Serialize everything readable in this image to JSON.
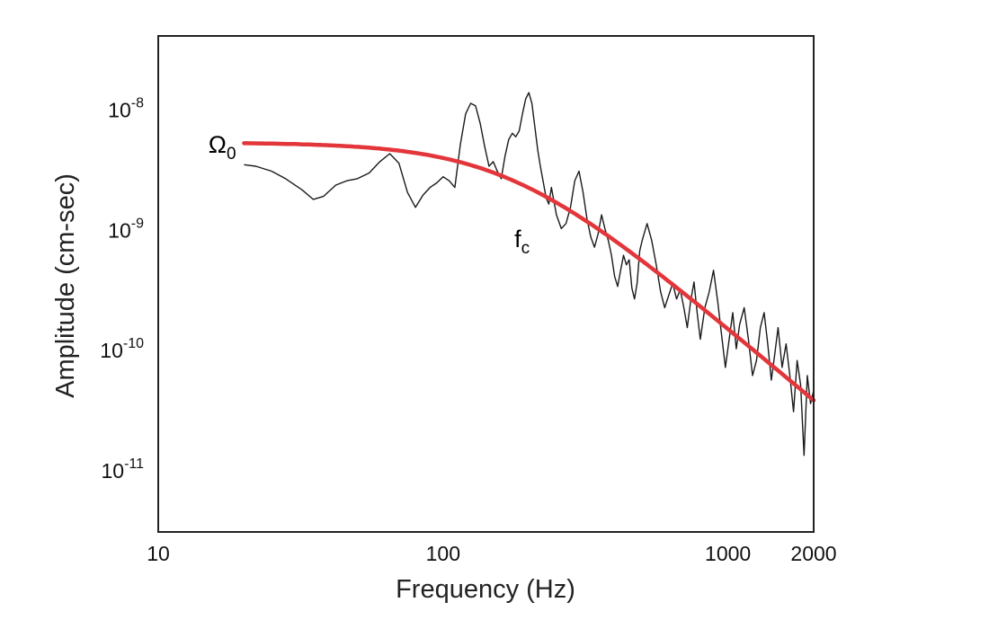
{
  "chart_data": {
    "type": "line",
    "xscale": "log",
    "yscale": "log",
    "xlim": [
      10,
      2000
    ],
    "ylim": [
      3e-12,
      4e-08
    ],
    "xlabel": "Frequency (Hz)",
    "ylabel": "Amplitude (cm-sec)",
    "x_ticks": [
      {
        "value": 10,
        "label": "10"
      },
      {
        "value": 100,
        "label": "100"
      },
      {
        "value": 1000,
        "label": "1000"
      },
      {
        "value": 2000,
        "label": "2000"
      }
    ],
    "y_ticks": [
      {
        "value": 1e-08,
        "base": "10",
        "exp": "-8"
      },
      {
        "value": 1e-09,
        "base": "10",
        "exp": "-9"
      },
      {
        "value": 1e-10,
        "base": "10",
        "exp": "-10"
      },
      {
        "value": 1e-11,
        "base": "10",
        "exp": "-11"
      }
    ],
    "grid": false,
    "series": [
      {
        "color": "#1a1a1a",
        "x": [
          20,
          22,
          25,
          28,
          32,
          35,
          38,
          42,
          46,
          50,
          55,
          60,
          65,
          70,
          75,
          80,
          85,
          90,
          95,
          100,
          105,
          110,
          115,
          120,
          125,
          130,
          135,
          140,
          145,
          150,
          155,
          160,
          165,
          170,
          175,
          180,
          185,
          190,
          195,
          200,
          205,
          210,
          215,
          220,
          225,
          230,
          235,
          240,
          250,
          260,
          270,
          280,
          290,
          300,
          310,
          320,
          330,
          340,
          350,
          360,
          370,
          380,
          390,
          400,
          410,
          420,
          430,
          440,
          450,
          460,
          470,
          480,
          490,
          500,
          520,
          540,
          560,
          580,
          600,
          620,
          640,
          660,
          680,
          700,
          720,
          740,
          760,
          780,
          800,
          830,
          860,
          890,
          920,
          950,
          980,
          1010,
          1040,
          1070,
          1100,
          1140,
          1180,
          1220,
          1260,
          1300,
          1340,
          1380,
          1420,
          1460,
          1500,
          1550,
          1600,
          1650,
          1700,
          1750,
          1800,
          1850,
          1900,
          1950,
          2000
        ],
        "values": [
          3.4e-09,
          3.3e-09,
          3e-09,
          2.6e-09,
          2.1e-09,
          1.75e-09,
          1.85e-09,
          2.3e-09,
          2.5e-09,
          2.6e-09,
          2.9e-09,
          3.6e-09,
          4.2e-09,
          3.5e-09,
          2e-09,
          1.5e-09,
          1.9e-09,
          2.2e-09,
          2.4e-09,
          2.7e-09,
          2.5e-09,
          2.2e-09,
          5e-09,
          9e-09,
          1.1e-08,
          1.05e-08,
          7.5e-09,
          4.8e-09,
          3.3e-09,
          3.6e-09,
          3e-09,
          2.6e-09,
          4e-09,
          5.5e-09,
          6.2e-09,
          5.8e-09,
          6.5e-09,
          9e-09,
          1.2e-08,
          1.35e-08,
          1.1e-08,
          7e-09,
          4.5e-09,
          3.2e-09,
          2.4e-09,
          1.8e-09,
          1.6e-09,
          2.2e-09,
          1.3e-09,
          1e-09,
          1.1e-09,
          1.5e-09,
          2.5e-09,
          3e-09,
          2e-09,
          1.2e-09,
          8.5e-10,
          7e-10,
          9e-10,
          1.3e-09,
          1e-09,
          8e-10,
          6e-10,
          4e-10,
          3.3e-10,
          4.5e-10,
          6e-10,
          5e-10,
          5.5e-10,
          3.2e-10,
          2.6e-10,
          3.5e-10,
          6.5e-10,
          8e-10,
          1.1e-09,
          8e-10,
          5e-10,
          3e-10,
          2.2e-10,
          2.8e-10,
          3.5e-10,
          2.6e-10,
          3.1e-10,
          2.2e-10,
          1.5e-10,
          2.5e-10,
          3.6e-10,
          2e-10,
          1.2e-10,
          2.2e-10,
          3e-10,
          4.5e-10,
          2.5e-10,
          1.3e-10,
          7e-11,
          1.2e-10,
          2e-10,
          1e-10,
          1.6e-10,
          2.2e-10,
          1.2e-10,
          6e-11,
          8e-11,
          1.5e-10,
          2e-10,
          1.1e-10,
          5.5e-11,
          9e-11,
          1.5e-10,
          7e-11,
          1.1e-10,
          6e-11,
          3e-11,
          8e-11,
          5e-11,
          1.3e-11,
          6e-11,
          3.5e-11,
          4.5e-11
        ]
      },
      {
        "color": "#e3363b",
        "model": "brune",
        "omega0": 5.2e-09,
        "fc": 170,
        "x_range": [
          20,
          2000
        ]
      }
    ],
    "annotations": [
      {
        "base": "Ω",
        "sub": "0",
        "x": 15,
        "y": 5e-09
      },
      {
        "base": "f",
        "sub": "c",
        "x": 178,
        "y": 8.2e-10
      }
    ]
  }
}
